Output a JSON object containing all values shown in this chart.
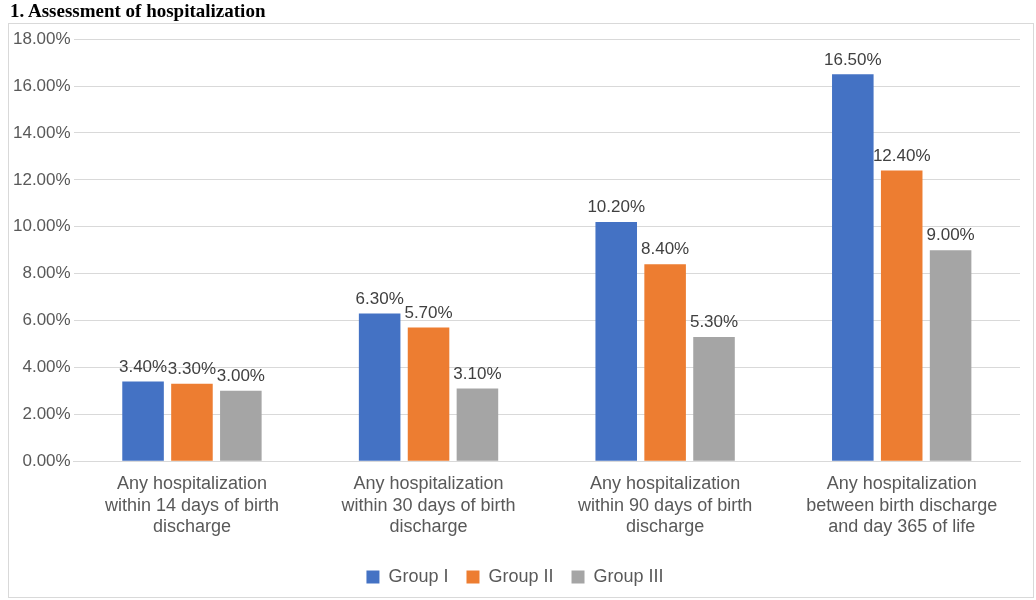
{
  "chart_data": {
    "type": "bar",
    "title": "1. Assessment of hospitalization",
    "categories": [
      "Any hospitalization within 14 days of birth discharge",
      "Any hospitalization within 30 days of birth discharge",
      "Any hospitalization within 90 days of birth discharge",
      "Any hospitalization between birth discharge and day 365 of life"
    ],
    "series": [
      {
        "name": "Group I",
        "color": "#4472c4",
        "values": [
          3.4,
          6.3,
          10.2,
          16.5
        ],
        "value_labels": [
          "3.40%",
          "6.30%",
          "10.20%",
          "16.50%"
        ]
      },
      {
        "name": "Group II",
        "color": "#ed7d31",
        "values": [
          3.3,
          5.7,
          8.4,
          12.4
        ],
        "value_labels": [
          "3.30%",
          "5.70%",
          "8.40%",
          "12.40%"
        ]
      },
      {
        "name": "Group III",
        "color": "#a5a5a5",
        "values": [
          3.0,
          3.1,
          5.3,
          9.0
        ],
        "value_labels": [
          "3.00%",
          "3.10%",
          "5.30%",
          "9.00%"
        ]
      }
    ],
    "ylim": [
      0,
      18
    ],
    "yticks": [
      {
        "value": 0,
        "label": "0.00%"
      },
      {
        "value": 2,
        "label": "2.00%"
      },
      {
        "value": 4,
        "label": "4.00%"
      },
      {
        "value": 6,
        "label": "6.00%"
      },
      {
        "value": 8,
        "label": "8.00%"
      },
      {
        "value": 10,
        "label": "10.00%"
      },
      {
        "value": 12,
        "label": "12.00%"
      },
      {
        "value": 14,
        "label": "14.00%"
      },
      {
        "value": 16,
        "label": "16.00%"
      },
      {
        "value": 18,
        "label": "18.00%"
      }
    ],
    "grid": "y",
    "legend": "bottom"
  }
}
